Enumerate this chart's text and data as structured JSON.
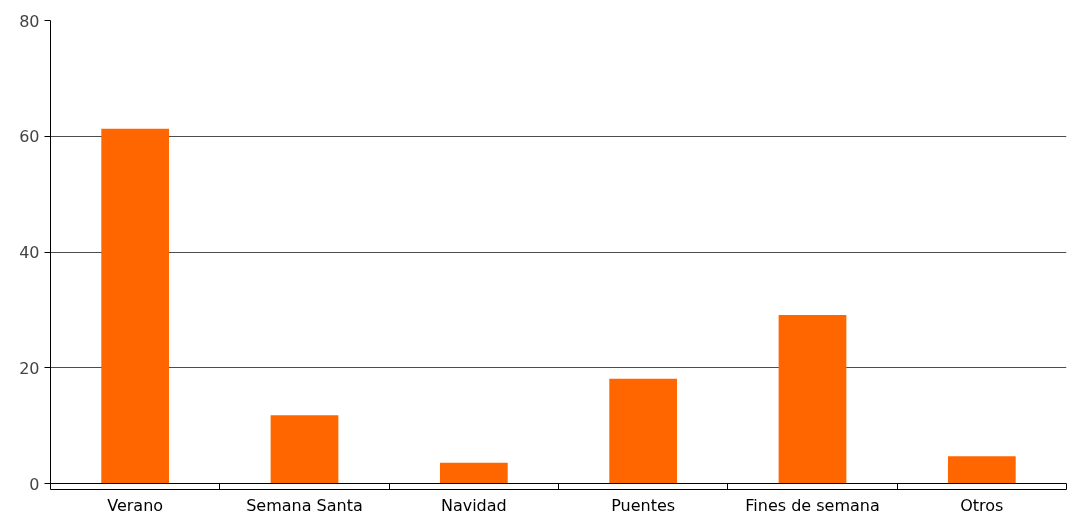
{
  "chart_data": {
    "type": "bar",
    "categories": [
      "Verano",
      "Semana Santa",
      "Navidad",
      "Puentes",
      "Fines de semana",
      "Otros"
    ],
    "values": [
      61.3,
      11.8,
      3.6,
      18.1,
      29.1,
      4.7
    ],
    "color": "#ff6600",
    "ylim": [
      0,
      80
    ],
    "yticks": [
      0,
      20,
      40,
      60,
      80
    ],
    "grid": "y"
  }
}
